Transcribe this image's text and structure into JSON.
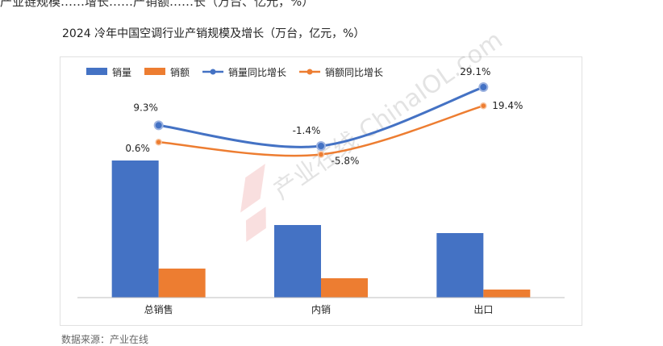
{
  "page": {
    "top_cut_text": "产业链规模……增长……产销额……长（万台、亿元，%）",
    "title": "2024 冷年中国空调行业产销规模及增长（万台，亿元，%）",
    "footer": "数据来源：产业在线",
    "watermark": "产业在线 ChinaIOL.com"
  },
  "colors": {
    "sales_volume": "#4472C4",
    "sales_value": "#ED7D31",
    "axis": "#bfbfbf"
  },
  "chart_data": {
    "type": "bar",
    "title": "2024 冷年中国空调行业产销规模及增长（万台，亿元，%）",
    "categories": [
      "总销售",
      "内销",
      "出口"
    ],
    "legend_position": "top-left",
    "grid": false,
    "series": [
      {
        "name": "销量",
        "type": "bar",
        "values": [
          17000,
          9000,
          8000
        ],
        "color": "#4472C4"
      },
      {
        "name": "销额",
        "type": "bar",
        "values": [
          3600,
          2400,
          1000
        ],
        "color": "#ED7D31"
      },
      {
        "name": "销量同比增长",
        "type": "line",
        "axis": "secondary",
        "values": [
          9.3,
          -1.4,
          29.1
        ],
        "labels": [
          "9.3%",
          "-1.4%",
          "29.1%"
        ],
        "color": "#4472C4"
      },
      {
        "name": "销额同比增长",
        "type": "line",
        "axis": "secondary",
        "values": [
          0.6,
          -5.8,
          19.4
        ],
        "labels": [
          "0.6%",
          "-5.8%",
          "19.4%"
        ],
        "color": "#ED7D31"
      }
    ],
    "bar_axis_max": 25500,
    "line_axis_range": [
      -80,
      45
    ]
  }
}
